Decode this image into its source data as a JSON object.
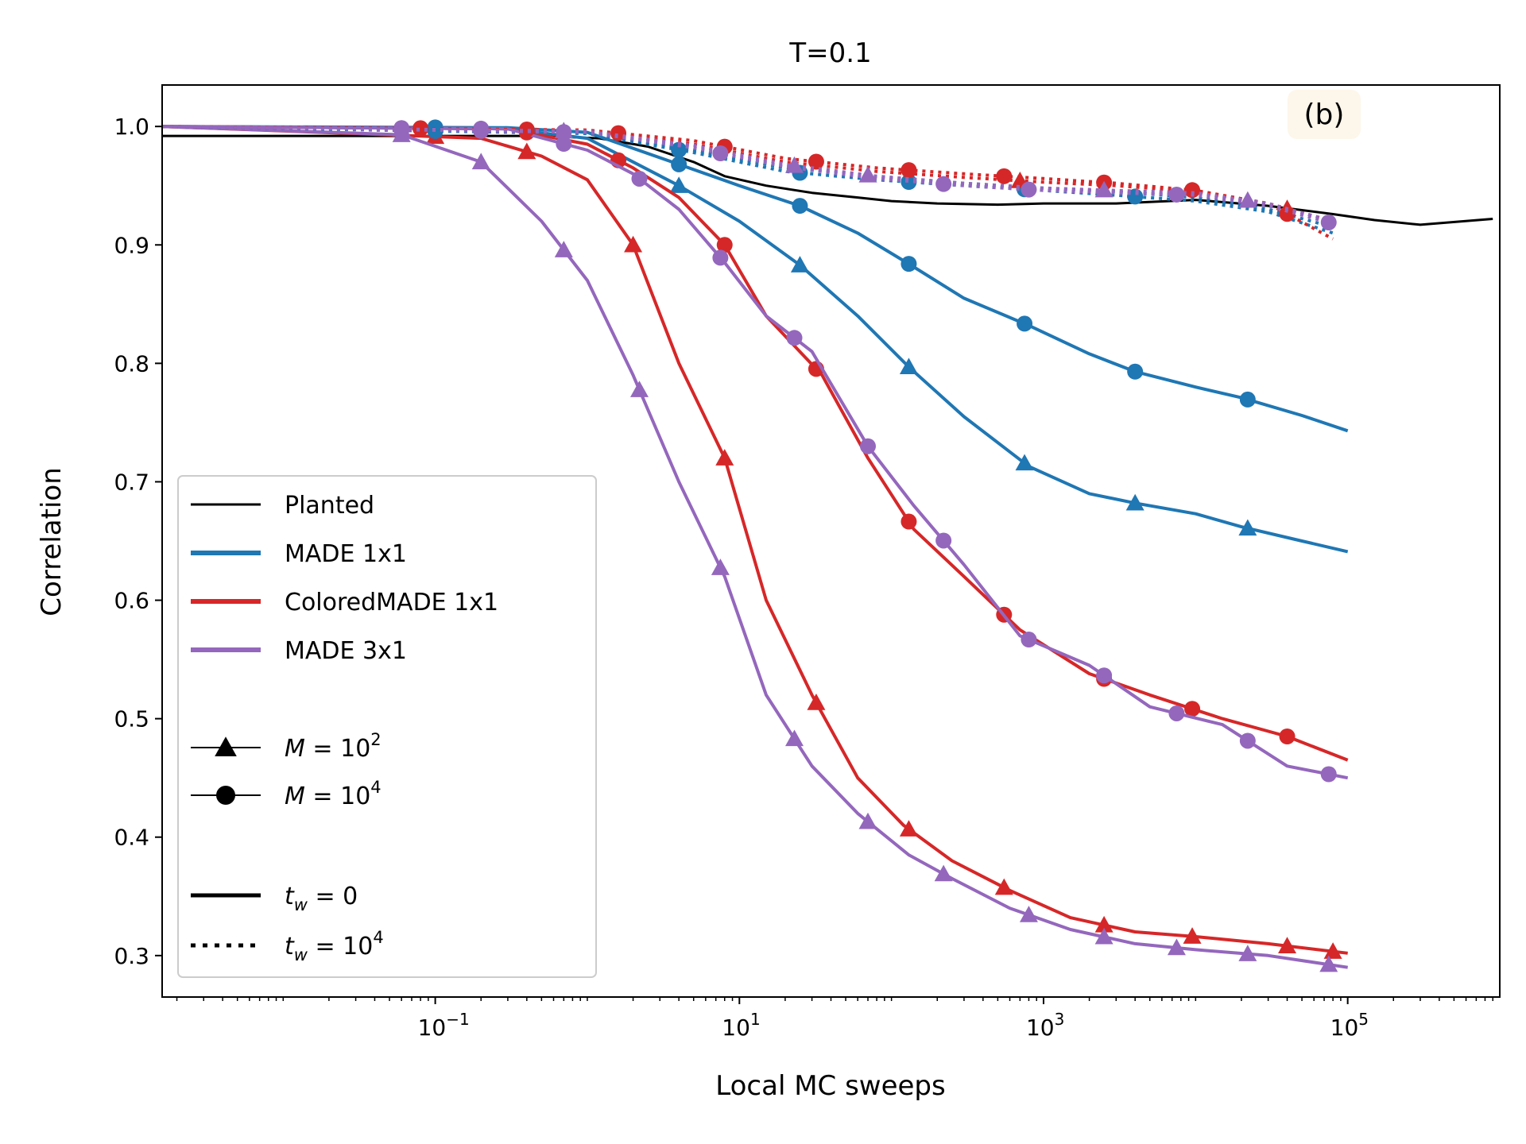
{
  "chart_data": {
    "type": "line",
    "title": "T=0.1",
    "panel_label": "(b)",
    "xlabel": "Local MC sweeps",
    "ylabel": "Correlation",
    "xscale": "log",
    "xlim": [
      0.0016,
      1000000
    ],
    "ylim": [
      0.265,
      1.035
    ],
    "xticks": [
      {
        "value": 0.1,
        "base": "10",
        "exp": "−1"
      },
      {
        "value": 10,
        "base": "10",
        "exp": "1"
      },
      {
        "value": 1000,
        "base": "10",
        "exp": "3"
      },
      {
        "value": 100000,
        "base": "10",
        "exp": "5"
      }
    ],
    "yticks": [
      "0.3",
      "0.4",
      "0.5",
      "0.6",
      "0.7",
      "0.8",
      "0.9",
      "1.0"
    ],
    "colors": {
      "planted": "#000000",
      "made_1x1": "#1f77b4",
      "colored_made_1x1": "#d62728",
      "made_3x1": "#9467bd"
    },
    "legend": {
      "entries": [
        {
          "label": "Planted",
          "color": "#000000",
          "style": "solid",
          "marker": "none"
        },
        {
          "label": "MADE 1x1",
          "color": "#1f77b4",
          "style": "solid",
          "marker": "none"
        },
        {
          "label": "ColoredMADE 1x1",
          "color": "#d62728",
          "style": "solid",
          "marker": "none"
        },
        {
          "label": "MADE 3x1",
          "color": "#9467bd",
          "style": "solid",
          "marker": "none"
        }
      ],
      "marker_entries": [
        {
          "label_var": "M",
          "label_base": "10",
          "label_exp": "2",
          "marker": "triangle"
        },
        {
          "label_var": "M",
          "label_base": "10",
          "label_exp": "4",
          "marker": "circle"
        }
      ],
      "style_entries": [
        {
          "label_var": "t",
          "label_sub": "w",
          "label_value": "0",
          "label_exp": "",
          "style": "solid"
        },
        {
          "label_var": "t",
          "label_sub": "w",
          "label_value": "10",
          "label_exp": "4",
          "style": "dotted"
        }
      ]
    },
    "series": [
      {
        "name": "Planted",
        "color": "#000000",
        "style": "solid",
        "marker": "none",
        "width": 3,
        "x": [
          0.0016,
          0.5,
          1.2,
          2.5,
          5,
          8,
          15,
          30,
          60,
          100,
          200,
          500,
          1000,
          3000,
          10000,
          30000,
          80000,
          150000,
          300000,
          900000
        ],
        "y": [
          0.992,
          0.992,
          0.99,
          0.983,
          0.97,
          0.958,
          0.95,
          0.944,
          0.94,
          0.937,
          0.935,
          0.934,
          0.935,
          0.935,
          0.938,
          0.933,
          0.926,
          0.921,
          0.917,
          0.922
        ]
      },
      {
        "name": "MADE 1x1 M=1e2 tw=0",
        "color": "#1f77b4",
        "style": "solid",
        "marker": "triangle",
        "width": 4,
        "x": [
          0.0016,
          0.3,
          1,
          4,
          10,
          25,
          60,
          130,
          300,
          800,
          2000,
          4000,
          10000,
          20000,
          50000,
          100000
        ],
        "y": [
          1.0,
          0.998,
          0.99,
          0.95,
          0.92,
          0.883,
          0.84,
          0.797,
          0.755,
          0.713,
          0.69,
          0.682,
          0.673,
          0.662,
          0.65,
          0.641
        ],
        "markers_x": [
          4,
          25,
          130,
          750,
          4000,
          22000
        ]
      },
      {
        "name": "MADE 1x1 M=1e4 tw=0",
        "color": "#1f77b4",
        "style": "solid",
        "marker": "circle",
        "width": 4,
        "x": [
          0.0016,
          0.3,
          1,
          4,
          10,
          25,
          60,
          130,
          300,
          800,
          2000,
          4000,
          10000,
          20000,
          50000,
          100000
        ],
        "y": [
          1.0,
          0.999,
          0.995,
          0.968,
          0.95,
          0.933,
          0.91,
          0.884,
          0.855,
          0.832,
          0.808,
          0.793,
          0.78,
          0.771,
          0.756,
          0.743
        ],
        "markers_x": [
          0.1,
          4,
          25,
          130,
          750,
          4000,
          22000
        ]
      },
      {
        "name": "ColoredMADE 1x1 M=1e2 tw=0",
        "color": "#d62728",
        "style": "solid",
        "marker": "triangle",
        "width": 4,
        "x": [
          0.0016,
          0.2,
          0.5,
          1,
          2,
          4,
          8,
          15,
          30,
          60,
          120,
          250,
          600,
          1500,
          4000,
          10000,
          30000,
          100000
        ],
        "y": [
          1.0,
          0.99,
          0.975,
          0.955,
          0.9,
          0.8,
          0.72,
          0.6,
          0.52,
          0.45,
          0.41,
          0.38,
          0.355,
          0.332,
          0.32,
          0.316,
          0.31,
          0.302
        ],
        "markers_x": [
          0.1,
          0.4,
          2,
          8,
          32,
          130,
          550,
          2500,
          9500,
          40000,
          80000
        ]
      },
      {
        "name": "ColoredMADE 1x1 M=1e4 tw=0",
        "color": "#d62728",
        "style": "solid",
        "marker": "circle",
        "width": 4,
        "x": [
          0.0016,
          0.3,
          1,
          2,
          4,
          8,
          15,
          35,
          70,
          140,
          300,
          700,
          2000,
          5000,
          15000,
          40000,
          100000
        ],
        "y": [
          1.0,
          0.998,
          0.985,
          0.965,
          0.94,
          0.9,
          0.84,
          0.79,
          0.72,
          0.66,
          0.62,
          0.575,
          0.538,
          0.52,
          0.5,
          0.485,
          0.465
        ],
        "markers_x": [
          0.08,
          0.4,
          1.6,
          8,
          32,
          130,
          550,
          2500,
          9500,
          40000
        ]
      },
      {
        "name": "MADE 3x1 M=1e2 tw=0",
        "color": "#9467bd",
        "style": "solid",
        "marker": "triangle",
        "width": 4,
        "x": [
          0.0016,
          0.06,
          0.2,
          0.5,
          1,
          2,
          4,
          8,
          15,
          30,
          60,
          130,
          250,
          600,
          1500,
          4000,
          10000,
          30000,
          100000
        ],
        "y": [
          1.0,
          0.993,
          0.97,
          0.92,
          0.87,
          0.79,
          0.7,
          0.62,
          0.52,
          0.46,
          0.42,
          0.385,
          0.365,
          0.34,
          0.322,
          0.31,
          0.305,
          0.3,
          0.29
        ],
        "markers_x": [
          0.06,
          0.2,
          0.7,
          2.2,
          7.5,
          23,
          70,
          220,
          800,
          2500,
          7500,
          22000,
          75000
        ]
      },
      {
        "name": "MADE 3x1 M=1e4 tw=0",
        "color": "#9467bd",
        "style": "solid",
        "marker": "circle",
        "width": 4,
        "x": [
          0.0016,
          0.3,
          1,
          2,
          4,
          8,
          15,
          30,
          70,
          140,
          300,
          700,
          2000,
          5000,
          15000,
          40000,
          100000
        ],
        "y": [
          1.0,
          0.998,
          0.98,
          0.96,
          0.93,
          0.885,
          0.84,
          0.81,
          0.73,
          0.68,
          0.63,
          0.57,
          0.545,
          0.51,
          0.495,
          0.46,
          0.45
        ],
        "markers_x": [
          0.06,
          0.2,
          0.7,
          2.2,
          7.5,
          23,
          70,
          220,
          800,
          2500,
          7500,
          22000,
          75000
        ]
      },
      {
        "name": "MADE 1x1 M=1e2 tw=1e4",
        "color": "#1f77b4",
        "style": "dotted",
        "marker": "triangle",
        "width": 4,
        "x": [
          0.0016,
          1,
          5,
          20,
          80,
          300,
          1000,
          3000,
          10000,
          30000,
          80000
        ],
        "y": [
          1.0,
          0.995,
          0.98,
          0.965,
          0.958,
          0.952,
          0.948,
          0.945,
          0.94,
          0.93,
          0.915
        ]
      },
      {
        "name": "MADE 1x1 M=1e4 tw=1e4",
        "color": "#1f77b4",
        "style": "dotted",
        "marker": "circle",
        "width": 4,
        "x": [
          0.0016,
          1,
          5,
          20,
          80,
          300,
          1000,
          3000,
          10000,
          30000,
          80000
        ],
        "y": [
          1.0,
          0.994,
          0.978,
          0.962,
          0.955,
          0.95,
          0.946,
          0.942,
          0.937,
          0.928,
          0.91
        ],
        "markers_x": [
          0.1,
          4,
          25,
          130,
          750,
          4000
        ]
      },
      {
        "name": "ColoredMADE 1x1 M=1e2 tw=1e4",
        "color": "#d62728",
        "style": "dotted",
        "marker": "triangle",
        "width": 4,
        "x": [
          0.0016,
          1,
          5,
          20,
          80,
          300,
          1000,
          3000,
          10000,
          30000,
          80000
        ],
        "y": [
          1.0,
          0.996,
          0.985,
          0.97,
          0.962,
          0.957,
          0.953,
          0.95,
          0.945,
          0.935,
          0.92
        ],
        "markers_x": [
          700,
          40000
        ]
      },
      {
        "name": "ColoredMADE 1x1 M=1e4 tw=1e4",
        "color": "#d62728",
        "style": "dotted",
        "marker": "circle",
        "width": 4,
        "x": [
          0.0016,
          1,
          5,
          20,
          80,
          300,
          1000,
          3000,
          10000,
          30000,
          80000
        ],
        "y": [
          1.0,
          0.997,
          0.988,
          0.973,
          0.965,
          0.96,
          0.956,
          0.952,
          0.946,
          0.935,
          0.905
        ],
        "markers_x": [
          0.08,
          0.4,
          1.6,
          8,
          32,
          130,
          550,
          2500,
          9500,
          40000
        ]
      },
      {
        "name": "MADE 3x1 M=1e2 tw=1e4",
        "color": "#9467bd",
        "style": "dotted",
        "marker": "triangle",
        "width": 4,
        "x": [
          0.0016,
          1,
          5,
          20,
          80,
          300,
          1000,
          3000,
          10000,
          30000,
          80000
        ],
        "y": [
          1.0,
          0.996,
          0.984,
          0.968,
          0.958,
          0.952,
          0.948,
          0.946,
          0.944,
          0.935,
          0.92
        ],
        "markers_x": [
          0.06,
          0.7,
          23,
          70,
          2500,
          22000
        ]
      },
      {
        "name": "MADE 3x1 M=1e4 tw=1e4",
        "color": "#9467bd",
        "style": "dotted",
        "marker": "circle",
        "width": 4,
        "x": [
          0.0016,
          1,
          5,
          20,
          80,
          300,
          1000,
          3000,
          10000,
          30000,
          80000
        ],
        "y": [
          1.0,
          0.995,
          0.982,
          0.966,
          0.956,
          0.95,
          0.946,
          0.944,
          0.942,
          0.933,
          0.918
        ],
        "markers_x": [
          0.06,
          0.2,
          0.7,
          7.5,
          220,
          800,
          7500,
          75000
        ]
      }
    ]
  }
}
